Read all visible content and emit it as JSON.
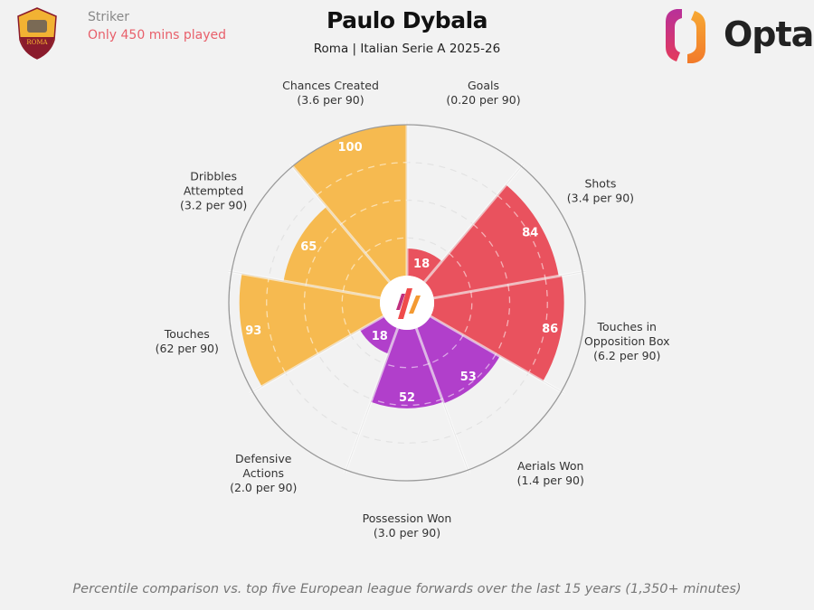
{
  "header": {
    "position": "Striker",
    "minutes_note": "Only 450 mins played",
    "player_name": "Paulo Dybala",
    "subtitle": "Roma | Italian Serie A 2025-26",
    "crest_text": "ROMA",
    "brand": "Opta"
  },
  "footer": "Percentile comparison vs. top five European league forwards over the last 15 years (1,350+ minutes)",
  "colors": {
    "attacking": "#E9525E",
    "possession": "#F6BA50",
    "defending": "#B13FCB",
    "background": "#f2f2f2"
  },
  "chart_data": {
    "type": "pizza",
    "scale": [
      0,
      100
    ],
    "rings": [
      25,
      50,
      75,
      100
    ],
    "categories": [
      {
        "name": "Goals",
        "sub": "(0.20 per 90)",
        "value": 18,
        "group": "attacking"
      },
      {
        "name": "Shots",
        "sub": "(3.4 per 90)",
        "value": 84,
        "group": "attacking"
      },
      {
        "name": "Touches in|Opposition Box",
        "sub": "(6.2 per 90)",
        "value": 86,
        "group": "attacking"
      },
      {
        "name": "Aerials Won",
        "sub": "(1.4 per 90)",
        "value": 53,
        "group": "defending"
      },
      {
        "name": "Possession Won",
        "sub": "(3.0 per 90)",
        "value": 52,
        "group": "defending"
      },
      {
        "name": "Defensive|Actions",
        "sub": "(2.0 per 90)",
        "value": 18,
        "group": "defending"
      },
      {
        "name": "Touches",
        "sub": "(62 per 90)",
        "value": 93,
        "group": "possession"
      },
      {
        "name": "Dribbles|Attempted",
        "sub": "(3.2 per 90)",
        "value": 65,
        "group": "possession"
      },
      {
        "name": "Chances Created",
        "sub": "(3.6 per 90)",
        "value": 100,
        "group": "possession"
      }
    ]
  }
}
